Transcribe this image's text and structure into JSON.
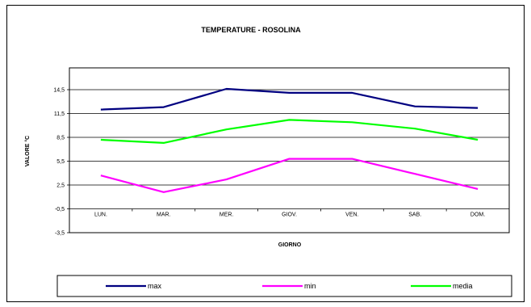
{
  "chart_data": {
    "type": "line",
    "title": "TEMPERATURE - ROSOLINA",
    "xlabel": "GIORNO",
    "ylabel": "VALORE °C",
    "categories": [
      "LUN.",
      "MAR.",
      "MER.",
      "GIOV.",
      "VEN.",
      "SAB.",
      "DOM."
    ],
    "ylim": [
      -3.5,
      14.5
    ],
    "yticks": [
      "14,5",
      "11,5",
      "8,5",
      "5,5",
      "2,5",
      "-0,5",
      "-3,5"
    ],
    "ytick_values": [
      14.5,
      11.5,
      8.5,
      5.5,
      2.5,
      -0.5,
      -3.5
    ],
    "grid": true,
    "legend_position": "bottom",
    "series": [
      {
        "name": "max",
        "color": "#000080",
        "values": [
          12.0,
          12.3,
          14.6,
          14.1,
          14.1,
          12.4,
          12.2
        ]
      },
      {
        "name": "min",
        "color": "#ff00ff",
        "values": [
          3.7,
          1.6,
          3.2,
          5.8,
          5.8,
          3.9,
          2.0
        ]
      },
      {
        "name": "media",
        "color": "#00ff00",
        "values": [
          8.2,
          7.8,
          9.5,
          10.7,
          10.4,
          9.6,
          8.2
        ]
      }
    ]
  }
}
